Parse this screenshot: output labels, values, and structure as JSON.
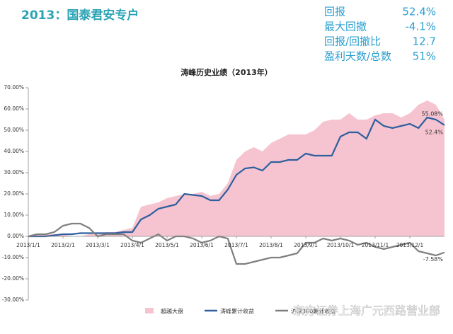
{
  "header": {
    "title": "2013：国泰君安专户"
  },
  "stats": [
    {
      "label": "回报",
      "value": "52.4%"
    },
    {
      "label": "最大回撤",
      "value": "-4.1%"
    },
    {
      "label": "回报/回撤比",
      "value": "12.7"
    },
    {
      "label": "盈利天数/总数",
      "value": "51%"
    }
  ],
  "watermark": "东方证券上海广元西路营业部",
  "chart_data": {
    "type": "line",
    "title": "涛峰历史业绩（2013年）",
    "x": [
      0,
      0.25,
      0.5,
      0.75,
      1,
      1.25,
      1.5,
      1.75,
      2,
      2.25,
      2.5,
      2.75,
      3,
      3.25,
      3.5,
      3.75,
      4,
      4.25,
      4.5,
      4.75,
      5,
      5.25,
      5.5,
      5.75,
      6,
      6.25,
      6.5,
      6.75,
      7,
      7.25,
      7.5,
      7.75,
      8,
      8.25,
      8.5,
      8.75,
      9,
      9.25,
      9.5,
      9.75,
      10,
      10.25,
      10.5,
      10.75,
      11,
      11.25,
      11.5,
      11.75,
      12
    ],
    "xlim": [
      0,
      12
    ],
    "xticks": [
      {
        "value": 0,
        "label": "2013/1/1"
      },
      {
        "value": 1,
        "label": "2013/2/1"
      },
      {
        "value": 2,
        "label": "2013/3/1"
      },
      {
        "value": 3,
        "label": "2013/4/1"
      },
      {
        "value": 4,
        "label": "2013/5/1"
      },
      {
        "value": 5,
        "label": "2013/6/1"
      },
      {
        "value": 6,
        "label": "2013/7/1"
      },
      {
        "value": 7,
        "label": "2013/8/1"
      },
      {
        "value": 8,
        "label": "2013/9/1"
      },
      {
        "value": 9,
        "label": "2013/10/1"
      },
      {
        "value": 10,
        "label": "2013/11/1"
      },
      {
        "value": 11,
        "label": "2013/12/1"
      }
    ],
    "ylim": [
      -30,
      70
    ],
    "yticks": [
      {
        "value": -30,
        "label": "-30.00%"
      },
      {
        "value": -20,
        "label": "-20.00%"
      },
      {
        "value": -10,
        "label": "-10.00%"
      },
      {
        "value": 0,
        "label": "0.00%"
      },
      {
        "value": 10,
        "label": "10.00%"
      },
      {
        "value": 20,
        "label": "20.00%"
      },
      {
        "value": 30,
        "label": "30.00%"
      },
      {
        "value": 40,
        "label": "40.00%"
      },
      {
        "value": 50,
        "label": "50.00%"
      },
      {
        "value": 60,
        "label": "60.00%"
      },
      {
        "value": 70,
        "label": "70.00%"
      }
    ],
    "series": [
      {
        "name": "超越大盘",
        "kind": "area",
        "color": "#f6c4d0",
        "values": [
          0,
          1,
          1,
          1,
          1,
          0,
          0,
          1,
          1,
          2,
          2,
          3,
          4,
          14,
          15,
          16,
          18,
          19,
          20,
          20,
          21,
          19,
          20,
          25,
          36,
          40,
          42,
          40,
          44,
          46,
          48,
          48,
          48,
          50,
          54,
          55,
          55,
          58,
          55,
          55,
          57,
          58,
          58,
          56,
          58,
          62,
          64,
          62,
          55.08
        ],
        "value_labels": [
          null,
          null,
          null,
          null,
          null,
          null,
          null,
          null,
          null,
          null,
          null,
          null,
          null,
          null,
          null,
          null,
          null,
          null,
          null,
          null,
          null,
          null,
          null,
          null,
          null,
          null,
          null,
          null,
          null,
          null,
          null,
          null,
          null,
          null,
          null,
          null,
          null,
          null,
          null,
          null,
          null,
          null,
          null,
          null,
          null,
          null,
          null,
          null,
          "55.08%"
        ]
      },
      {
        "name": "涛峰累计收益",
        "kind": "line",
        "color": "#2e5f9e",
        "values": [
          0,
          0,
          0,
          0.5,
          1,
          1,
          1.5,
          1.5,
          1.5,
          1.5,
          1.5,
          2,
          2,
          8,
          10,
          13,
          14,
          15,
          20,
          19.5,
          19,
          17,
          17,
          22,
          29,
          32,
          32.5,
          31,
          35,
          35,
          36,
          36,
          39,
          38,
          38,
          38,
          47,
          49,
          49,
          46,
          55,
          52,
          51,
          52,
          53,
          51,
          56,
          55,
          52.4
        ],
        "value_labels": [
          null,
          null,
          null,
          null,
          null,
          null,
          null,
          null,
          null,
          null,
          null,
          null,
          null,
          null,
          null,
          null,
          null,
          null,
          null,
          null,
          null,
          null,
          null,
          null,
          null,
          null,
          null,
          null,
          null,
          null,
          null,
          null,
          null,
          null,
          null,
          null,
          null,
          null,
          null,
          null,
          null,
          null,
          null,
          null,
          null,
          null,
          null,
          null,
          "52.4%"
        ]
      },
      {
        "name": "沪深300累计收益",
        "kind": "line",
        "color": "#7f7f7f",
        "values": [
          0,
          1,
          1,
          2,
          5,
          6,
          6,
          4,
          0,
          1,
          1,
          1,
          -2,
          -3,
          -1,
          1,
          -2,
          0,
          0,
          -1,
          -3,
          -2,
          0,
          -1,
          -13,
          -13,
          -12,
          -11,
          -10,
          -10,
          -9,
          -8,
          -3,
          -3,
          -1,
          -2,
          -1,
          -2,
          -4,
          -3,
          -5,
          -6,
          -5,
          -4,
          -3,
          -7,
          -8,
          -9,
          -7.58
        ],
        "value_labels": [
          null,
          null,
          null,
          null,
          null,
          null,
          null,
          null,
          null,
          null,
          null,
          null,
          null,
          null,
          null,
          null,
          null,
          null,
          null,
          null,
          null,
          null,
          null,
          null,
          null,
          null,
          null,
          null,
          null,
          null,
          null,
          null,
          null,
          null,
          null,
          null,
          null,
          null,
          null,
          null,
          null,
          null,
          null,
          null,
          null,
          null,
          null,
          null,
          "-7.58%"
        ]
      }
    ]
  }
}
